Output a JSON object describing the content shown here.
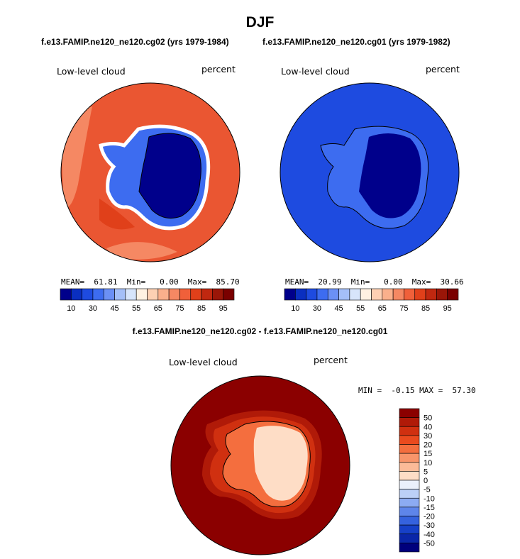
{
  "title": "DJF",
  "subtitles": {
    "left": "f.e13.FAMIP.ne120_ne120.cg02 (yrs 1979-1984)",
    "right": "f.e13.FAMIP.ne120_ne120.cg01 (yrs 1979-1982)",
    "diff": "f.e13.FAMIP.ne120_ne120.cg02 - f.e13.FAMIP.ne120_ne120.cg01"
  },
  "chart_data": [
    {
      "type": "heatmap",
      "projection": "south polar stereographic",
      "variable": "Low-level cloud",
      "units": "percent",
      "stats_text": "MEAN=  61.81  Min=   0.00  Max=  85.70",
      "stats": {
        "mean": 61.81,
        "min": 0.0,
        "max": 85.7
      },
      "levels": [
        10,
        20,
        30,
        40,
        45,
        50,
        55,
        60,
        65,
        70,
        75,
        80,
        85,
        90,
        95
      ],
      "tick_labels": [
        "10",
        "30",
        "45",
        "55",
        "65",
        "75",
        "85",
        "95"
      ],
      "colors": [
        "#00008b",
        "#0a2fc0",
        "#1e4be0",
        "#3d6cf0",
        "#6b90f5",
        "#a4bff8",
        "#d7e5fb",
        "#fff1e2",
        "#fdd0b3",
        "#fab08c",
        "#f58863",
        "#f0603a",
        "#e0401a",
        "#c02810",
        "#9a1608",
        "#7a0000"
      ]
    },
    {
      "type": "heatmap",
      "projection": "south polar stereographic",
      "variable": "Low-level cloud",
      "units": "percent",
      "stats_text": "MEAN=  20.99  Min=   0.00  Max=  30.66",
      "stats": {
        "mean": 20.99,
        "min": 0.0,
        "max": 30.66
      },
      "levels": [
        10,
        20,
        30,
        40,
        45,
        50,
        55,
        60,
        65,
        70,
        75,
        80,
        85,
        90,
        95
      ],
      "tick_labels": [
        "10",
        "30",
        "45",
        "55",
        "65",
        "75",
        "85",
        "95"
      ],
      "colors": [
        "#00008b",
        "#0a2fc0",
        "#1e4be0",
        "#3d6cf0",
        "#6b90f5",
        "#a4bff8",
        "#d7e5fb",
        "#fff1e2",
        "#fdd0b3",
        "#fab08c",
        "#f58863",
        "#f0603a",
        "#e0401a",
        "#c02810",
        "#9a1608",
        "#7a0000"
      ]
    },
    {
      "type": "heatmap",
      "projection": "south polar stereographic",
      "variable": "Low-level cloud",
      "units": "percent",
      "stats_text": "MIN =  -0.15 MAX =  57.30",
      "stats": {
        "min": -0.15,
        "max": 57.3
      },
      "tick_labels": [
        "50",
        "40",
        "30",
        "20",
        "15",
        "10",
        "5",
        "0",
        "-5",
        "-10",
        "-15",
        "-20",
        "-30",
        "-40",
        "-50"
      ],
      "colors": [
        "#8b0000",
        "#b01a08",
        "#d03010",
        "#ea4a1e",
        "#f46e3e",
        "#f8956a",
        "#fbbb98",
        "#feddc6",
        "#eaf0fb",
        "#bcd0f7",
        "#8cabf2",
        "#5e85ea",
        "#3562de",
        "#1640c8",
        "#0a26a8",
        "#00007c"
      ]
    }
  ],
  "colors": {
    "left_ocean": "#ea5632",
    "left_ocean_light": "#f58863",
    "left_ocean_dark": "#e0401a",
    "left_coast": "#3d6cf0",
    "left_ice": "#00008b",
    "right_ocean": "#1e4be0",
    "right_land": "#3d6cf0",
    "right_ice": "#00008b",
    "diff_ocean": "#8b0000",
    "diff_ring1": "#b01a08",
    "diff_ring2": "#d03010",
    "diff_ring3": "#f46e3e",
    "diff_ice": "#feddc6"
  }
}
